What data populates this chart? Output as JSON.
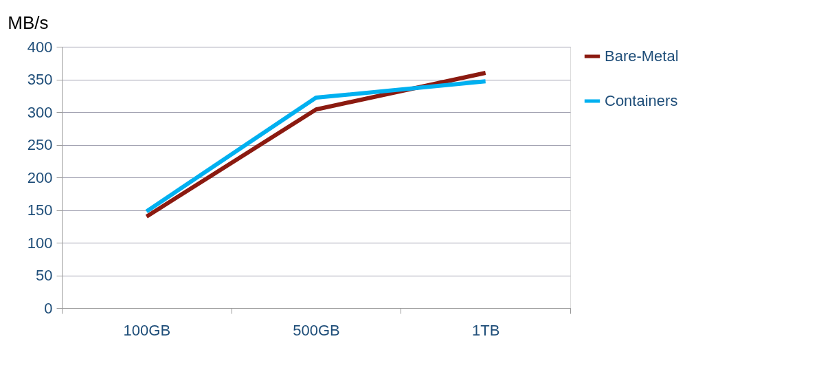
{
  "chart_data": {
    "type": "line",
    "ylabel": "MB/s",
    "categories": [
      "100GB",
      "500GB",
      "1TB"
    ],
    "series": [
      {
        "name": "Bare-Metal",
        "color": "#8b1a10",
        "values": [
          140,
          304,
          360
        ]
      },
      {
        "name": "Containers",
        "color": "#00b0f0",
        "values": [
          148,
          322,
          347
        ]
      }
    ],
    "ylim": [
      0,
      400
    ],
    "yticks": [
      0,
      50,
      100,
      150,
      200,
      250,
      300,
      350,
      400
    ],
    "grid": "y",
    "legend": "right",
    "marker": "none",
    "line_style": "solid"
  }
}
